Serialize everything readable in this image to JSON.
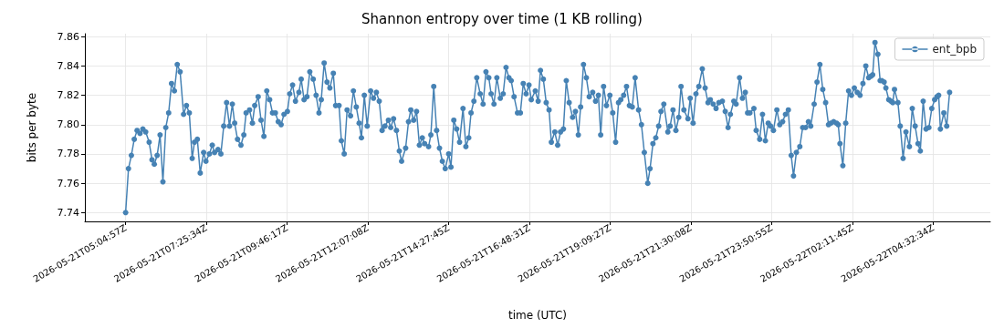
{
  "chart_data": {
    "type": "line",
    "title": "Shannon entropy over time (1 KB rolling)",
    "xlabel": "time (UTC)",
    "ylabel": "bits per byte",
    "x": [
      "2026-05-21T05:05",
      "2026-05-21T05:10",
      "2026-05-21T05:15",
      "2026-05-21T05:20",
      "2026-05-21T05:25",
      "2026-05-21T05:30",
      "2026-05-21T05:35",
      "2026-05-21T05:40",
      "2026-05-21T05:46",
      "2026-05-21T05:51",
      "2026-05-21T05:55",
      "2026-05-21T06:00",
      "2026-05-21T06:05",
      "2026-05-21T06:10",
      "2026-05-21T06:15",
      "2026-05-21T06:20",
      "2026-05-21T06:25",
      "2026-05-21T06:30",
      "2026-05-21T06:35",
      "2026-05-21T06:40",
      "2026-05-21T06:46",
      "2026-05-21T06:51",
      "2026-05-21T06:56",
      "2026-05-21T07:01",
      "2026-05-21T07:05",
      "2026-05-21T07:10",
      "2026-05-21T07:15",
      "2026-05-21T07:21",
      "2026-05-21T07:25",
      "2026-05-21T07:31",
      "2026-05-21T07:36",
      "2026-05-21T07:40",
      "2026-05-21T07:46",
      "2026-05-21T07:51",
      "2026-05-21T07:56",
      "2026-05-21T08:01",
      "2026-05-21T08:06",
      "2026-05-21T08:11",
      "2026-05-21T08:15",
      "2026-05-21T08:20",
      "2026-05-21T08:26",
      "2026-05-21T08:31",
      "2026-05-21T08:35",
      "2026-05-21T08:41",
      "2026-05-21T08:46",
      "2026-05-21T08:50",
      "2026-05-21T08:56",
      "2026-05-21T09:01",
      "2026-05-21T09:06",
      "2026-05-21T09:11",
      "2026-05-21T09:16",
      "2026-05-21T09:21",
      "2026-05-21T09:26",
      "2026-05-21T09:31",
      "2026-05-21T09:36",
      "2026-05-21T09:41",
      "2026-05-21T09:47",
      "2026-05-21T09:51",
      "2026-05-21T09:56",
      "2026-05-21T10:01",
      "2026-05-21T10:07",
      "2026-05-21T10:11",
      "2026-05-21T10:16",
      "2026-05-21T10:21",
      "2026-05-21T10:26",
      "2026-05-21T10:32",
      "2026-05-21T10:37",
      "2026-05-21T10:42",
      "2026-05-21T10:46",
      "2026-05-21T10:51",
      "2026-05-21T10:56",
      "2026-05-21T11:01",
      "2026-05-21T11:07",
      "2026-05-21T11:11",
      "2026-05-21T11:17",
      "2026-05-21T11:21",
      "2026-05-21T11:26",
      "2026-05-21T11:31",
      "2026-05-21T11:37",
      "2026-05-21T11:42",
      "2026-05-21T11:47",
      "2026-05-21T11:52",
      "2026-05-21T11:56",
      "2026-05-21T12:01",
      "2026-05-21T12:06",
      "2026-05-21T12:12",
      "2026-05-21T12:17",
      "2026-05-21T12:22",
      "2026-05-21T12:27",
      "2026-05-21T12:32",
      "2026-05-21T12:37",
      "2026-05-21T12:43",
      "2026-05-21T12:47",
      "2026-05-21T12:52",
      "2026-05-21T12:57",
      "2026-05-21T13:02",
      "2026-05-21T13:06",
      "2026-05-21T13:13",
      "2026-05-21T13:18",
      "2026-05-21T13:22",
      "2026-05-21T13:27",
      "2026-05-21T13:32",
      "2026-05-21T13:37",
      "2026-05-21T13:42",
      "2026-05-21T13:46",
      "2026-05-21T13:53",
      "2026-05-21T13:57",
      "2026-05-21T14:02",
      "2026-05-21T14:07",
      "2026-05-21T14:12",
      "2026-05-21T14:17",
      "2026-05-21T14:22",
      "2026-05-21T14:28",
      "2026-05-21T14:32",
      "2026-05-21T14:37",
      "2026-05-21T14:42",
      "2026-05-21T14:47",
      "2026-05-21T14:53",
      "2026-05-21T14:58",
      "2026-05-21T15:03",
      "2026-05-21T15:07",
      "2026-05-21T15:12",
      "2026-05-21T15:17",
      "2026-05-21T15:23",
      "2026-05-21T15:28",
      "2026-05-21T15:33",
      "2026-05-21T15:38",
      "2026-05-21T15:42",
      "2026-05-21T15:47",
      "2026-05-21T15:52",
      "2026-05-21T15:58",
      "2026-05-21T16:03",
      "2026-05-21T16:08",
      "2026-05-21T16:13",
      "2026-05-21T16:17",
      "2026-05-21T16:22",
      "2026-05-21T16:28",
      "2026-05-21T16:33",
      "2026-05-21T16:38",
      "2026-05-21T16:43",
      "2026-05-21T16:48",
      "2026-05-21T16:52",
      "2026-05-21T16:59",
      "2026-05-21T17:04",
      "2026-05-21T17:08",
      "2026-05-21T17:13",
      "2026-05-21T17:18",
      "2026-05-21T17:23",
      "2026-05-21T17:27",
      "2026-05-21T17:33",
      "2026-05-21T17:38",
      "2026-05-21T17:43",
      "2026-05-21T17:48",
      "2026-05-21T17:53",
      "2026-05-21T17:58",
      "2026-05-21T18:04",
      "2026-05-21T18:09",
      "2026-05-21T18:14",
      "2026-05-21T18:18",
      "2026-05-21T18:23",
      "2026-05-21T18:28",
      "2026-05-21T18:33",
      "2026-05-21T18:39",
      "2026-05-21T18:44",
      "2026-05-21T18:49",
      "2026-05-21T18:53",
      "2026-05-21T18:58",
      "2026-05-21T19:03",
      "2026-05-21T19:09",
      "2026-05-21T19:14",
      "2026-05-21T19:19",
      "2026-05-21T19:24",
      "2026-05-21T19:28",
      "2026-05-21T19:33",
      "2026-05-21T19:38",
      "2026-05-21T19:43",
      "2026-05-21T19:48",
      "2026-05-21T19:53",
      "2026-05-21T19:59",
      "2026-05-21T20:04",
      "2026-05-21T20:09",
      "2026-05-21T20:15",
      "2026-05-21T20:19",
      "2026-05-21T20:24",
      "2026-05-21T20:29",
      "2026-05-21T20:34",
      "2026-05-21T20:38",
      "2026-05-21T20:43",
      "2026-05-21T20:50",
      "2026-05-21T20:54",
      "2026-05-21T20:59",
      "2026-05-21T21:04",
      "2026-05-21T21:09",
      "2026-05-21T21:13",
      "2026-05-21T21:18",
      "2026-05-21T21:25",
      "2026-05-21T21:29",
      "2026-05-21T21:34",
      "2026-05-21T21:39",
      "2026-05-21T21:44",
      "2026-05-21T21:50",
      "2026-05-21T21:55",
      "2026-05-21T22:00",
      "2026-05-21T22:04",
      "2026-05-21T22:09",
      "2026-05-21T22:14",
      "2026-05-21T22:19",
      "2026-05-21T22:25",
      "2026-05-21T22:30",
      "2026-05-21T22:35",
      "2026-05-21T22:39",
      "2026-05-21T22:45",
      "2026-05-21T22:49",
      "2026-05-21T22:55",
      "2026-05-21T23:00",
      "2026-05-21T23:05",
      "2026-05-21T23:09",
      "2026-05-21T23:13",
      "2026-05-21T23:20",
      "2026-05-21T23:24",
      "2026-05-21T23:30",
      "2026-05-21T23:35",
      "2026-05-21T23:40",
      "2026-05-21T23:45",
      "2026-05-21T23:49",
      "2026-05-21T23:54",
      "2026-05-22T00:00",
      "2026-05-22T00:05",
      "2026-05-22T00:10",
      "2026-05-22T00:15",
      "2026-05-22T00:20",
      "2026-05-22T00:25",
      "2026-05-22T00:29",
      "2026-05-22T00:34",
      "2026-05-22T00:40",
      "2026-05-22T00:45",
      "2026-05-22T00:50",
      "2026-05-22T00:55",
      "2026-05-22T00:59",
      "2026-05-22T01:05",
      "2026-05-22T01:10",
      "2026-05-22T01:15",
      "2026-05-22T01:20",
      "2026-05-22T01:25",
      "2026-05-22T01:30",
      "2026-05-22T01:34",
      "2026-05-22T01:39",
      "2026-05-22T01:44",
      "2026-05-22T01:47",
      "2026-05-22T01:50",
      "2026-05-22T01:55",
      "2026-05-22T02:00",
      "2026-05-22T02:05",
      "2026-05-22T02:10",
      "2026-05-22T02:15",
      "2026-05-22T02:20",
      "2026-05-22T02:25",
      "2026-05-22T02:30",
      "2026-05-22T02:35",
      "2026-05-22T02:40",
      "2026-05-22T02:44",
      "2026-05-22T02:47",
      "2026-05-22T02:51",
      "2026-05-22T02:56",
      "2026-05-22T03:00",
      "2026-05-22T03:03",
      "2026-05-22T03:07",
      "2026-05-22T03:10",
      "2026-05-22T03:15",
      "2026-05-22T03:19",
      "2026-05-22T03:22",
      "2026-05-22T03:25",
      "2026-05-22T03:31",
      "2026-05-22T03:35",
      "2026-05-22T03:40",
      "2026-05-22T03:45",
      "2026-05-22T03:51",
      "2026-05-22T03:56",
      "2026-05-22T04:01",
      "2026-05-22T04:06",
      "2026-05-22T04:10",
      "2026-05-22T04:15",
      "2026-05-22T04:20",
      "2026-05-22T04:25",
      "2026-05-22T04:30",
      "2026-05-22T04:35",
      "2026-05-22T04:39",
      "2026-05-22T04:42",
      "2026-05-22T04:45",
      "2026-05-22T04:51",
      "2026-05-22T04:56",
      "2026-05-22T05:01"
    ],
    "series": [
      {
        "name": "ent_bpb",
        "color": "#4682b4",
        "values": [
          7.74,
          7.77,
          7.779,
          7.79,
          7.796,
          7.794,
          7.797,
          7.795,
          7.788,
          7.776,
          7.773,
          7.779,
          7.793,
          7.761,
          7.798,
          7.808,
          7.828,
          7.823,
          7.841,
          7.836,
          7.807,
          7.813,
          7.808,
          7.777,
          7.788,
          7.79,
          7.767,
          7.781,
          7.775,
          7.78,
          7.786,
          7.781,
          7.783,
          7.78,
          7.799,
          7.815,
          7.799,
          7.814,
          7.801,
          7.79,
          7.786,
          7.793,
          7.808,
          7.81,
          7.801,
          7.813,
          7.819,
          7.803,
          7.792,
          7.823,
          7.817,
          7.808,
          7.808,
          7.802,
          7.8,
          7.807,
          7.809,
          7.821,
          7.827,
          7.816,
          7.822,
          7.831,
          7.817,
          7.819,
          7.836,
          7.831,
          7.82,
          7.808,
          7.817,
          7.842,
          7.829,
          7.825,
          7.835,
          7.813,
          7.813,
          7.789,
          7.78,
          7.81,
          7.806,
          7.823,
          7.812,
          7.801,
          7.791,
          7.82,
          7.799,
          7.823,
          7.818,
          7.822,
          7.816,
          7.796,
          7.799,
          7.803,
          7.798,
          7.804,
          7.796,
          7.782,
          7.775,
          7.784,
          7.802,
          7.81,
          7.803,
          7.809,
          7.786,
          7.791,
          7.787,
          7.785,
          7.793,
          7.826,
          7.796,
          7.784,
          7.775,
          7.77,
          7.78,
          7.771,
          7.803,
          7.797,
          7.788,
          7.811,
          7.785,
          7.791,
          7.808,
          7.816,
          7.832,
          7.821,
          7.814,
          7.836,
          7.832,
          7.821,
          7.814,
          7.832,
          7.818,
          7.821,
          7.839,
          7.832,
          7.83,
          7.819,
          7.808,
          7.808,
          7.828,
          7.821,
          7.827,
          7.817,
          7.823,
          7.816,
          7.837,
          7.831,
          7.815,
          7.81,
          7.788,
          7.795,
          7.786,
          7.795,
          7.797,
          7.83,
          7.815,
          7.805,
          7.809,
          7.793,
          7.812,
          7.841,
          7.832,
          7.819,
          7.822,
          7.816,
          7.82,
          7.793,
          7.826,
          7.813,
          7.82,
          7.808,
          7.788,
          7.815,
          7.817,
          7.82,
          7.826,
          7.813,
          7.812,
          7.832,
          7.81,
          7.8,
          7.781,
          7.76,
          7.77,
          7.787,
          7.791,
          7.799,
          7.809,
          7.814,
          7.795,
          7.799,
          7.81,
          7.796,
          7.805,
          7.826,
          7.81,
          7.804,
          7.818,
          7.801,
          7.821,
          7.826,
          7.838,
          7.825,
          7.815,
          7.817,
          7.814,
          7.811,
          7.815,
          7.816,
          7.809,
          7.798,
          7.807,
          7.816,
          7.814,
          7.832,
          7.818,
          7.822,
          7.808,
          7.808,
          7.811,
          7.796,
          7.79,
          7.807,
          7.789,
          7.801,
          7.799,
          7.796,
          7.81,
          7.8,
          7.802,
          7.807,
          7.81,
          7.779,
          7.765,
          7.781,
          7.785,
          7.798,
          7.798,
          7.802,
          7.799,
          7.814,
          7.829,
          7.841,
          7.824,
          7.815,
          7.8,
          7.801,
          7.802,
          7.801,
          7.8,
          7.787,
          7.772,
          7.801,
          7.823,
          7.82,
          7.825,
          7.822,
          7.82,
          7.828,
          7.84,
          7.832,
          7.833,
          7.834,
          7.856,
          7.848,
          7.83,
          7.83,
          7.829,
          7.825,
          7.817,
          7.816,
          7.815,
          7.824,
          7.815,
          7.799,
          7.777,
          7.795,
          7.785,
          7.811,
          7.799,
          7.787,
          7.782,
          7.816,
          7.797,
          7.798,
          7.811,
          7.817,
          7.819,
          7.82,
          7.797,
          7.808,
          7.799,
          7.822
        ]
      }
    ],
    "xlim": [
      "2026-05-21T03:54",
      "2026-05-22T06:12"
    ],
    "xticks": [
      {
        "value": "2026-05-21T05:04:57",
        "label": "2026-05-21T05:04:57Z"
      },
      {
        "value": "2026-05-21T07:25:34",
        "label": "2026-05-21T07:25:34Z"
      },
      {
        "value": "2026-05-21T09:46:17",
        "label": "2026-05-21T09:46:17Z"
      },
      {
        "value": "2026-05-21T12:07:08",
        "label": "2026-05-21T12:07:08Z"
      },
      {
        "value": "2026-05-21T14:27:45",
        "label": "2026-05-21T14:27:45Z"
      },
      {
        "value": "2026-05-21T16:48:31",
        "label": "2026-05-21T16:48:31Z"
      },
      {
        "value": "2026-05-21T19:09:27",
        "label": "2026-05-21T19:09:27Z"
      },
      {
        "value": "2026-05-21T21:30:08",
        "label": "2026-05-21T21:30:08Z"
      },
      {
        "value": "2026-05-21T23:50:55",
        "label": "2026-05-21T23:50:55Z"
      },
      {
        "value": "2026-05-22T02:11:45",
        "label": "2026-05-22T02:11:45Z"
      },
      {
        "value": "2026-05-22T04:32:34",
        "label": "2026-05-22T04:32:34Z"
      }
    ],
    "ylim": [
      7.734,
      7.862
    ],
    "yticks": [
      7.74,
      7.76,
      7.78,
      {
        "value": 7.8,
        "label": "7.80"
      },
      7.82,
      7.84,
      7.86
    ],
    "grid": true,
    "legend": "top right",
    "marker": "circle",
    "line_style": "solid"
  }
}
